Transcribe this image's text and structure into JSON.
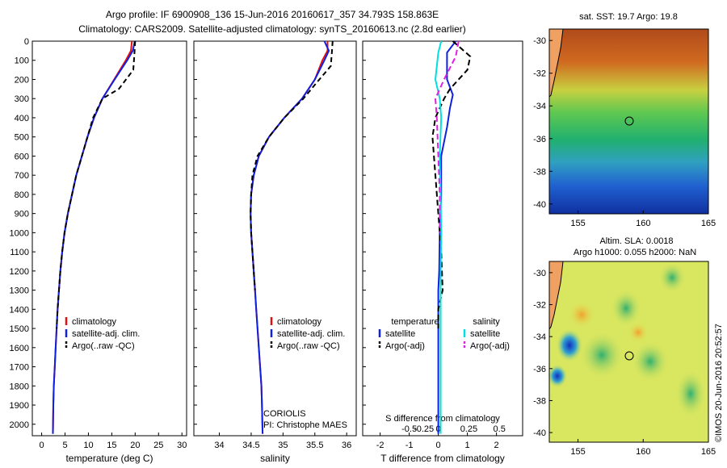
{
  "figure": {
    "title1": "Argo profile: IF 6900908_136 15-Jun-2016 20160617_357 34.793S 158.863E",
    "title2": "Climatology: CARS2009. Satellite-adjusted climatology: synTS_20160613.nc (2.8d earlier)",
    "coriolis": "CORIOLIS",
    "pi": "PI: Christophe MAES",
    "timestamp": "©IMOS 20-Jun-2016 20:52:57"
  },
  "maps": {
    "sst": {
      "title": "sat. SST: 19.7  Argo: 19.8",
      "yticks": [
        "-30",
        "-32",
        "-34",
        "-36",
        "-38",
        "-40"
      ],
      "xticks": [
        "155",
        "160",
        "165"
      ]
    },
    "sla": {
      "title1": "Altim. SLA: 0.0018",
      "title2": "Argo h1000: 0.055 h2000: NaN",
      "yticks": [
        "-30",
        "-32",
        "-34",
        "-36",
        "-38",
        "-40"
      ],
      "xticks": [
        "155",
        "160",
        "165"
      ]
    }
  },
  "colors": {
    "climatology": "#e01010",
    "satellite": "#1020e0",
    "argo": "#000000",
    "satellite_salinity": "#00e0e0",
    "argo_salinity": "#e020e0"
  },
  "chart_data": [
    {
      "type": "line",
      "xlabel": "temperature (deg C)",
      "ylabel": "",
      "xlim": [
        -2,
        31
      ],
      "ylim": [
        0,
        2060
      ],
      "y_inverted": true,
      "xticks": [
        "0",
        "5",
        "10",
        "15",
        "20",
        "25",
        "30"
      ],
      "yticks": [
        "0",
        "100",
        "200",
        "300",
        "400",
        "500",
        "600",
        "700",
        "800",
        "900",
        "1000",
        "1100",
        "1200",
        "1300",
        "1400",
        "1500",
        "1600",
        "1700",
        "1800",
        "1900",
        "2000"
      ],
      "legend": [
        "climatology",
        "satellite-adj. clim.",
        "Argo(..raw -QC)"
      ],
      "series": [
        {
          "name": "climatology",
          "color": "#e01010",
          "dash": "",
          "x": [
            19.3,
            19.1,
            18.0,
            15.5,
            13.0,
            11.2,
            9.8,
            8.6,
            7.4,
            6.5,
            5.6,
            4.9,
            4.4,
            4.0,
            3.7,
            3.4,
            3.2,
            3.0,
            2.8,
            2.6,
            2.5,
            2.4
          ],
          "y": [
            0,
            50,
            100,
            200,
            300,
            400,
            500,
            600,
            700,
            800,
            900,
            1000,
            1100,
            1200,
            1300,
            1400,
            1500,
            1600,
            1700,
            1800,
            1900,
            2050
          ]
        },
        {
          "name": "satellite-adj. clim.",
          "color": "#1020e0",
          "dash": "",
          "x": [
            19.9,
            19.5,
            18.3,
            15.6,
            13.0,
            11.2,
            9.8,
            8.6,
            7.4,
            6.5,
            5.6,
            4.9,
            4.4,
            4.0,
            3.7,
            3.4,
            3.2,
            3.0,
            2.8,
            2.6,
            2.5,
            2.4
          ],
          "y": [
            0,
            50,
            100,
            200,
            300,
            400,
            500,
            600,
            700,
            800,
            900,
            1000,
            1100,
            1200,
            1300,
            1400,
            1500,
            1600,
            1700,
            1800,
            1900,
            2050
          ]
        },
        {
          "name": "Argo(..raw -QC)",
          "color": "#000000",
          "dash": "6,4",
          "x": [
            20.0,
            19.8,
            19.6,
            16.5,
            13.0,
            11.0,
            9.8,
            8.6,
            7.4,
            6.5,
            5.6,
            4.9,
            4.4,
            4.0,
            3.7,
            3.4,
            3.2
          ],
          "y": [
            0,
            80,
            150,
            250,
            300,
            400,
            500,
            600,
            700,
            800,
            900,
            1000,
            1100,
            1200,
            1300,
            1400,
            1500
          ]
        }
      ]
    },
    {
      "type": "line",
      "xlabel": "salinity",
      "ylabel": "",
      "xlim": [
        33.6,
        36.15
      ],
      "ylim": [
        0,
        2060
      ],
      "y_inverted": true,
      "xticks": [
        "34",
        "34.5",
        "35",
        "35.5",
        "36"
      ],
      "legend": [
        "climatology",
        "satellite-adj. clim.",
        "Argo(..raw -QC)"
      ],
      "series": [
        {
          "name": "climatology",
          "color": "#e01010",
          "dash": "",
          "x": [
            35.7,
            35.7,
            35.62,
            35.5,
            35.3,
            35.02,
            34.78,
            34.62,
            34.54,
            34.5,
            34.49,
            34.5,
            34.52,
            34.54,
            34.56,
            34.58,
            34.6,
            34.62,
            34.64,
            34.66,
            34.67,
            34.68
          ],
          "y": [
            0,
            50,
            100,
            200,
            300,
            400,
            500,
            600,
            700,
            800,
            900,
            1000,
            1100,
            1200,
            1300,
            1400,
            1500,
            1600,
            1700,
            1800,
            1900,
            2050
          ]
        },
        {
          "name": "satellite-adj. clim.",
          "color": "#1020e0",
          "dash": "",
          "x": [
            35.65,
            35.72,
            35.65,
            35.5,
            35.3,
            35.02,
            34.78,
            34.62,
            34.54,
            34.5,
            34.49,
            34.5,
            34.52,
            34.54,
            34.56,
            34.58,
            34.6,
            34.62,
            34.64,
            34.66,
            34.67,
            34.68
          ],
          "y": [
            0,
            50,
            100,
            200,
            300,
            400,
            500,
            600,
            700,
            800,
            900,
            1000,
            1100,
            1200,
            1300,
            1400,
            1500,
            1600,
            1700,
            1800,
            1900,
            2050
          ]
        },
        {
          "name": "Argo(..raw -QC)",
          "color": "#000000",
          "dash": "6,4",
          "x": [
            35.78,
            35.77,
            35.75,
            35.52,
            35.32,
            35.02,
            34.78,
            34.6,
            34.52,
            34.5,
            34.49,
            34.5,
            34.52,
            34.54,
            34.56
          ],
          "y": [
            0,
            50,
            130,
            220,
            300,
            400,
            500,
            600,
            700,
            800,
            900,
            1000,
            1100,
            1200,
            1300
          ]
        }
      ]
    },
    {
      "type": "line",
      "xlabel": "T difference from climatology",
      "xlabel_top": "S difference from climatology",
      "ylabel": "",
      "xlim": [
        -2.6,
        2.9
      ],
      "ylim": [
        0,
        2060
      ],
      "y_inverted": true,
      "xticks_bottom": [
        [
          "-2",
          -2
        ],
        [
          "-1",
          -1
        ],
        [
          "0",
          0
        ],
        [
          "1",
          1
        ],
        [
          "2",
          2
        ]
      ],
      "xticks_top": [
        [
          "-0.5",
          -1
        ],
        [
          "-0.25",
          -0.5
        ],
        [
          "0",
          0
        ],
        [
          "0.25",
          1.05
        ],
        [
          "0.5",
          2.1
        ]
      ],
      "legend_temperature_title": "temperature",
      "legend_salinity_title": "salinity",
      "legend": [
        "satellite",
        "Argo(-adj)",
        "satellite",
        "Argo(-adj)"
      ],
      "series": [
        {
          "name": "satellite",
          "color": "#1020e0",
          "dash": "",
          "x": [
            0.6,
            0.3,
            0.3,
            0.5,
            0.4,
            0.3,
            0.1,
            0.1,
            0.05,
            0.03,
            0.0,
            0.0,
            0.0,
            0.0,
            0.0,
            0.0,
            0.0,
            0.0
          ],
          "y": [
            0,
            60,
            200,
            280,
            350,
            450,
            600,
            800,
            1000,
            1200,
            1300,
            1400,
            1500,
            1600,
            1700,
            1800,
            1900,
            2050
          ]
        },
        {
          "name": "Argo(-adj)",
          "color": "#000000",
          "dash": "7,4",
          "x": [
            0.5,
            1.1,
            1.0,
            0.4,
            0.2,
            -0.1,
            -0.2,
            -0.1,
            0.0,
            0.1,
            0.15,
            0.0,
            0.0
          ],
          "y": [
            0,
            80,
            150,
            250,
            300,
            400,
            500,
            700,
            900,
            1100,
            1300,
            1400,
            1500
          ]
        },
        {
          "name": "satellite",
          "color": "#00e0e0",
          "dash": "",
          "x": [
            0.1,
            0.0,
            -0.1,
            0.05,
            0.1,
            0.05,
            0.08,
            0.1,
            0.08,
            0.08,
            0.08,
            0.08,
            0.08,
            0.08,
            0.08
          ],
          "y": [
            0,
            60,
            200,
            300,
            400,
            600,
            800,
            1000,
            1200,
            1400,
            1600,
            1700,
            1800,
            1900,
            2050
          ]
        },
        {
          "name": "Argo(-adj)",
          "color": "#e020e0",
          "dash": "7,4",
          "x": [
            0.7,
            0.6,
            0.2,
            -0.1,
            -0.05,
            0.0,
            0.05,
            0.05
          ],
          "y": [
            0,
            80,
            200,
            300,
            400,
            600,
            800,
            1000
          ]
        }
      ]
    }
  ]
}
